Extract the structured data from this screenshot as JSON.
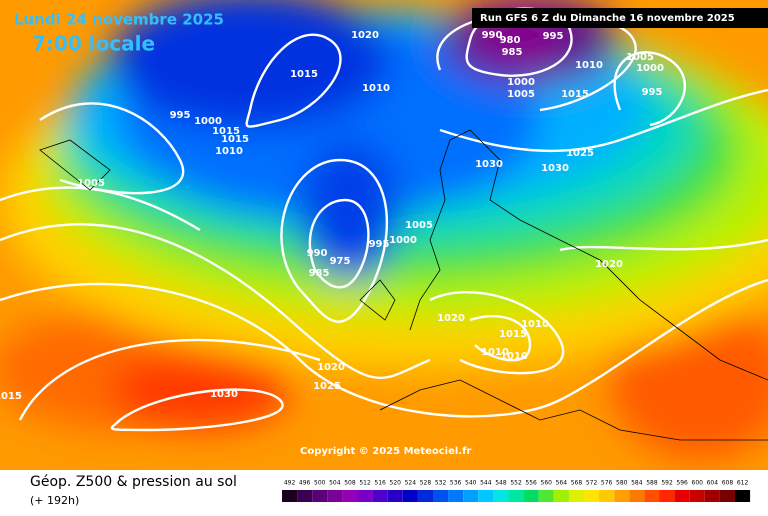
{
  "header": {
    "date": "Lundi 24 novembre 2025",
    "time": "7:00 locale",
    "run": "Run GFS 6 Z du Dimanche 16 novembre 2025"
  },
  "copyright": "Copyright © 2025 Meteociel.fr",
  "footer": {
    "title": "Géop. Z500 & pression au sol",
    "lead": "(+ 192h)"
  },
  "isobar_labels": [
    990,
    980,
    985,
    995,
    1020,
    1010,
    1015,
    1010,
    1015,
    1000,
    1005,
    1005,
    1000,
    995,
    1025,
    1030,
    1030,
    995,
    1000,
    1015,
    1015,
    1010,
    1005,
    1005,
    1000,
    995,
    990,
    985,
    975,
    1020,
    1020,
    1015,
    1010,
    1010,
    1010,
    1020,
    1025,
    1030,
    1015
  ],
  "scale": {
    "values": [
      492,
      496,
      500,
      504,
      508,
      512,
      516,
      520,
      524,
      528,
      532,
      536,
      540,
      544,
      548,
      552,
      556,
      560,
      564,
      568,
      572,
      576,
      580,
      584,
      588,
      592,
      596,
      600,
      604,
      608,
      612
    ],
    "colors": [
      "#1a0020",
      "#3c0050",
      "#5a0078",
      "#7a0096",
      "#9600b4",
      "#7800c8",
      "#5000c8",
      "#2800c8",
      "#0000c8",
      "#0028dc",
      "#0050f0",
      "#0078ff",
      "#00a0ff",
      "#00c8ff",
      "#00e6e6",
      "#00e6a0",
      "#00dc64",
      "#50e632",
      "#a0f000",
      "#dcf000",
      "#ffe600",
      "#ffc800",
      "#ffa000",
      "#ff7800",
      "#ff5000",
      "#ff2800",
      "#e60000",
      "#c80000",
      "#a00000",
      "#780000",
      "#000000"
    ]
  }
}
